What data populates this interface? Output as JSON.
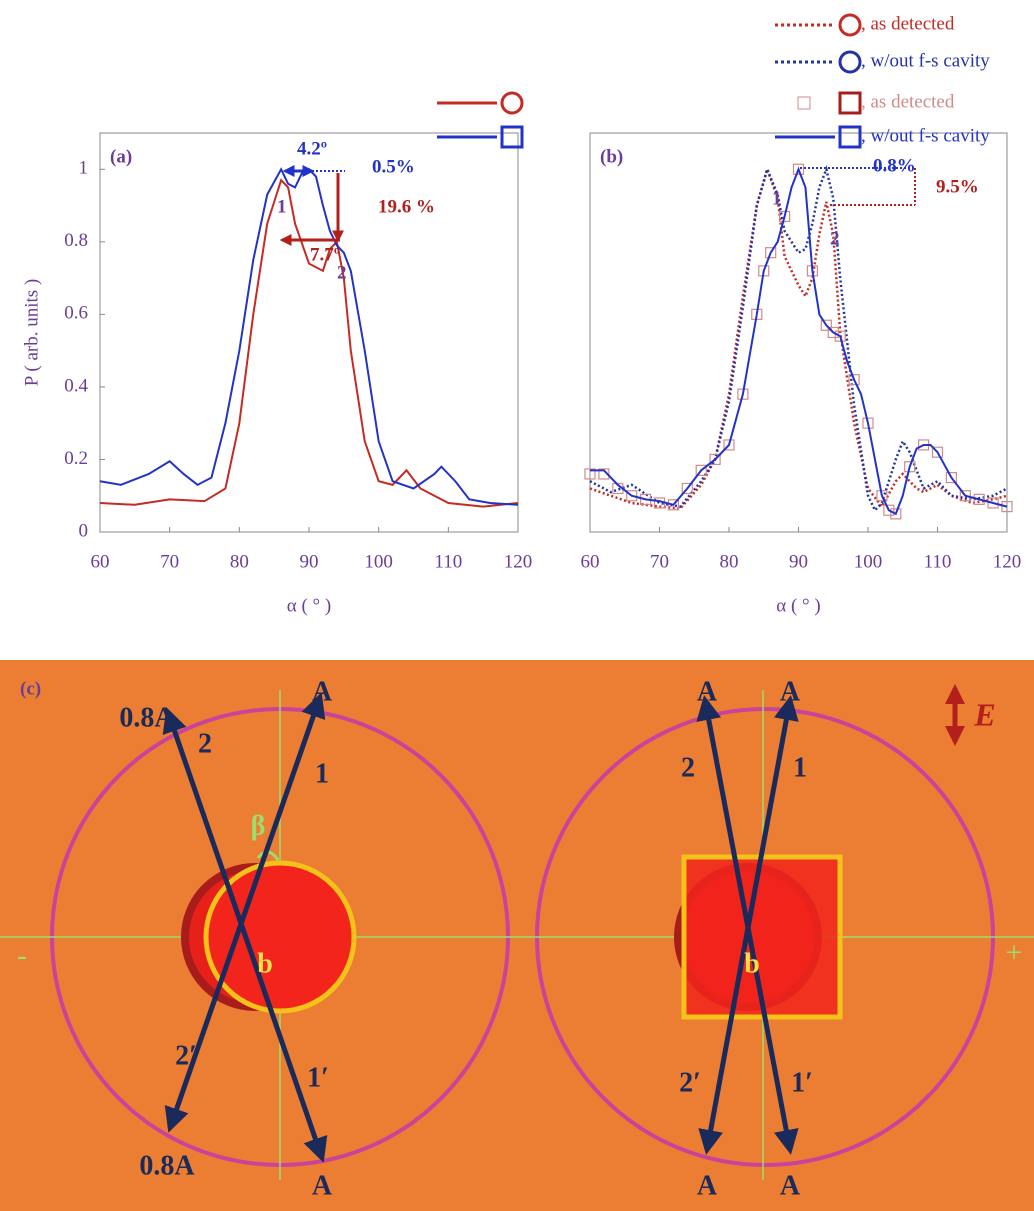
{
  "chart_data": [
    {
      "type": "line",
      "panel": "(a)",
      "xlabel": "α ( ° )",
      "ylabel": "P ( arb. units )",
      "xlim": [
        60,
        120
      ],
      "ylim": [
        0,
        1.1
      ],
      "xticks": [
        60,
        70,
        80,
        90,
        100,
        110,
        120
      ],
      "yticks": [
        0,
        0.2,
        0.4,
        0.6,
        0.8,
        1
      ],
      "series": [
        {
          "color": "#c62a22",
          "style": "solid",
          "marker": "circle",
          "x": [
            60,
            65,
            70,
            75,
            78,
            80,
            82,
            84,
            86,
            87,
            88,
            90,
            92,
            93,
            94,
            95,
            96,
            98,
            100,
            102,
            104,
            106,
            110,
            115,
            120
          ],
          "values": [
            0.08,
            0.075,
            0.09,
            0.085,
            0.12,
            0.3,
            0.6,
            0.85,
            0.97,
            0.95,
            0.85,
            0.74,
            0.72,
            0.78,
            0.8,
            0.7,
            0.5,
            0.25,
            0.14,
            0.13,
            0.17,
            0.12,
            0.08,
            0.07,
            0.08
          ]
        },
        {
          "color": "#2233c8",
          "style": "solid",
          "marker": "square",
          "x": [
            60,
            63,
            67,
            70,
            72,
            74,
            76,
            78,
            80,
            82,
            84,
            86,
            87,
            88,
            89,
            90,
            91,
            92,
            93,
            94,
            95,
            96,
            98,
            100,
            102,
            105,
            108,
            109,
            111,
            113,
            116,
            120
          ],
          "values": [
            0.14,
            0.13,
            0.16,
            0.195,
            0.16,
            0.13,
            0.15,
            0.3,
            0.5,
            0.75,
            0.93,
            1.0,
            0.96,
            0.95,
            0.99,
            1.0,
            0.98,
            0.9,
            0.83,
            0.79,
            0.77,
            0.72,
            0.5,
            0.25,
            0.14,
            0.12,
            0.16,
            0.18,
            0.14,
            0.09,
            0.08,
            0.075
          ]
        }
      ],
      "annotations": [
        {
          "text": "4.2º",
          "color": "#2233c8"
        },
        {
          "text": "0.5%",
          "color": "#2233c8"
        },
        {
          "text": "19.6 %",
          "color": "#b3201c"
        },
        {
          "text": "7.7º",
          "color": "#b3201c"
        },
        {
          "text": "1",
          "color": "#6a3d9a"
        },
        {
          "text": "2",
          "color": "#6a3d9a"
        }
      ]
    },
    {
      "type": "line",
      "panel": "(b)",
      "xlabel": "α ( ° )",
      "xlim": [
        60,
        120
      ],
      "ylim": [
        0,
        1.1
      ],
      "xticks": [
        60,
        70,
        80,
        90,
        100,
        110,
        120
      ],
      "series": [
        {
          "name": ", as detected",
          "color": "#c62a22",
          "style": "dotted",
          "marker": "circle",
          "x": [
            60,
            63,
            66,
            70,
            73,
            76,
            78,
            80,
            82,
            84,
            85.5,
            87,
            88,
            90,
            91,
            92,
            93,
            94,
            95,
            96,
            98,
            100,
            102,
            104,
            105,
            107,
            108,
            110,
            112,
            115,
            118,
            120
          ],
          "values": [
            0.12,
            0.1,
            0.08,
            0.07,
            0.065,
            0.13,
            0.2,
            0.38,
            0.65,
            0.9,
            1.0,
            0.92,
            0.76,
            0.68,
            0.65,
            0.7,
            0.82,
            0.91,
            0.82,
            0.55,
            0.3,
            0.12,
            0.07,
            0.14,
            0.16,
            0.12,
            0.11,
            0.13,
            0.1,
            0.08,
            0.09,
            0.1
          ]
        },
        {
          "name": ", w/out f-s cavity",
          "color": "#2233a8",
          "style": "dotted",
          "marker": "circle",
          "x": [
            60,
            63,
            66,
            70,
            73,
            76,
            78,
            80,
            82,
            84,
            85.5,
            87,
            88,
            90,
            91,
            92,
            93,
            94,
            95,
            96,
            98,
            100,
            101,
            102,
            104,
            105,
            106,
            108,
            110,
            112,
            115,
            118,
            120
          ],
          "values": [
            0.14,
            0.11,
            0.13,
            0.08,
            0.07,
            0.14,
            0.2,
            0.36,
            0.62,
            0.9,
            1.0,
            0.93,
            0.83,
            0.77,
            0.78,
            0.85,
            0.95,
            1.0,
            0.92,
            0.7,
            0.35,
            0.1,
            0.06,
            0.08,
            0.2,
            0.25,
            0.22,
            0.12,
            0.14,
            0.1,
            0.09,
            0.1,
            0.12
          ]
        },
        {
          "name": ", as detected",
          "color": "#d08a8a",
          "style": "markers",
          "marker": "square",
          "x": [
            60,
            62,
            64,
            66,
            68,
            70,
            72,
            74,
            76,
            78,
            80,
            82,
            84,
            85,
            86,
            88,
            90,
            92,
            94,
            95,
            96,
            98,
            100,
            102,
            103,
            104,
            106,
            108,
            110,
            112,
            114,
            116,
            118,
            120
          ],
          "values": [
            0.16,
            0.16,
            0.12,
            0.1,
            0.09,
            0.08,
            0.075,
            0.12,
            0.17,
            0.2,
            0.24,
            0.38,
            0.6,
            0.72,
            0.77,
            0.87,
            1.0,
            0.72,
            0.57,
            0.55,
            0.54,
            0.42,
            0.3,
            0.1,
            0.06,
            0.05,
            0.18,
            0.24,
            0.22,
            0.15,
            0.1,
            0.09,
            0.08,
            0.07
          ]
        },
        {
          "name": ", w/out f-s cavity",
          "color": "#2233c8",
          "style": "solid",
          "marker": "square",
          "x": [
            60,
            62,
            64,
            66,
            68,
            70,
            72,
            74,
            76,
            78,
            80,
            82,
            84,
            85,
            86,
            87,
            88,
            89,
            90,
            91,
            92,
            93,
            94,
            95,
            96,
            97,
            98,
            99,
            100,
            101,
            102,
            103,
            104,
            105,
            106,
            107,
            108,
            109,
            110,
            112,
            114,
            116,
            118,
            120
          ],
          "values": [
            0.17,
            0.17,
            0.13,
            0.1,
            0.09,
            0.085,
            0.075,
            0.12,
            0.17,
            0.2,
            0.24,
            0.38,
            0.6,
            0.72,
            0.77,
            0.8,
            0.87,
            0.95,
            1.0,
            0.95,
            0.72,
            0.6,
            0.57,
            0.55,
            0.54,
            0.47,
            0.42,
            0.38,
            0.3,
            0.2,
            0.1,
            0.06,
            0.05,
            0.1,
            0.18,
            0.23,
            0.24,
            0.24,
            0.22,
            0.15,
            0.1,
            0.09,
            0.08,
            0.07
          ]
        }
      ],
      "annotations": [
        {
          "text": "0.8%",
          "color": "#2233c8"
        },
        {
          "text": "9.5%",
          "color": "#b3201c"
        },
        {
          "text": "1",
          "color": "#6a3d9a"
        },
        {
          "text": "2",
          "color": "#6a3d9a"
        }
      ]
    }
  ],
  "diagram": {
    "label": "(c)",
    "field": "E",
    "minus": "-",
    "plus": "+",
    "left": [
      "0.8A",
      "A",
      "2",
      "1",
      "β",
      "b",
      "2′",
      "1′",
      "0.8A",
      "A"
    ],
    "right": [
      "A",
      "A",
      "2",
      "1",
      "b",
      "2′",
      "1′",
      "A",
      "A"
    ]
  }
}
